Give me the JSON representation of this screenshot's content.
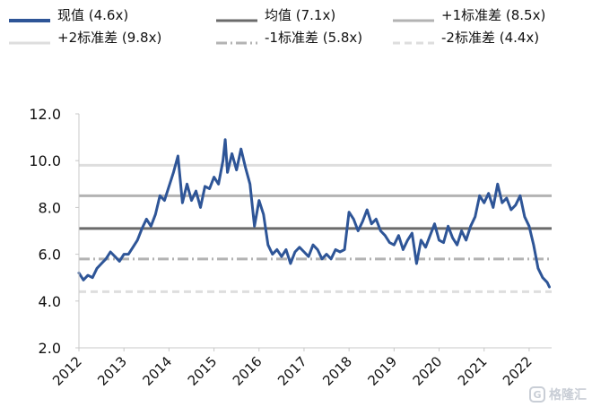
{
  "legend": [
    {
      "key": "current",
      "label": "现值 (4.6x)",
      "color": "#2e5597",
      "style": "solid",
      "width": 4
    },
    {
      "key": "mean",
      "label": "均值 (7.1x)",
      "color": "#6b6b6b",
      "style": "solid",
      "width": 3
    },
    {
      "key": "plus1",
      "label": "+1标准差 (8.5x)",
      "color": "#b3b3b3",
      "style": "solid",
      "width": 3
    },
    {
      "key": "plus2",
      "label": "+2标准差 (9.8x)",
      "color": "#dedede",
      "style": "solid",
      "width": 3
    },
    {
      "key": "minus1",
      "label": "-1标准差 (5.8x)",
      "color": "#b3b3b3",
      "style": "dashdot",
      "width": 3
    },
    {
      "key": "minus2",
      "label": "-2标准差 (4.4x)",
      "color": "#dedede",
      "style": "dashed",
      "width": 3
    }
  ],
  "watermark": "格隆汇",
  "chart_data": {
    "type": "line",
    "title": "",
    "xlabel": "",
    "ylabel": "",
    "ylim": [
      2.0,
      12.0
    ],
    "yticks": [
      "2.0",
      "4.0",
      "6.0",
      "8.0",
      "10.0",
      "12.0"
    ],
    "xticks": [
      "2012",
      "2013",
      "2014",
      "2015",
      "2016",
      "2017",
      "2018",
      "2019",
      "2020",
      "2021",
      "2022"
    ],
    "xlim": [
      2012.0,
      2022.5
    ],
    "grid": false,
    "legend_position": "top",
    "reference_lines": [
      {
        "name": "均值",
        "value": 7.1
      },
      {
        "name": "+1标准差",
        "value": 8.5
      },
      {
        "name": "+2标准差",
        "value": 9.8
      },
      {
        "name": "-1标准差",
        "value": 5.8
      },
      {
        "name": "-2标准差",
        "value": 4.4
      }
    ],
    "series": [
      {
        "name": "现值",
        "x": [
          2012.0,
          2012.1,
          2012.2,
          2012.3,
          2012.4,
          2012.5,
          2012.6,
          2012.7,
          2012.8,
          2012.9,
          2013.0,
          2013.1,
          2013.2,
          2013.3,
          2013.4,
          2013.5,
          2013.6,
          2013.7,
          2013.8,
          2013.9,
          2014.0,
          2014.1,
          2014.2,
          2014.3,
          2014.4,
          2014.5,
          2014.6,
          2014.7,
          2014.8,
          2014.9,
          2015.0,
          2015.1,
          2015.2,
          2015.25,
          2015.3,
          2015.4,
          2015.5,
          2015.6,
          2015.7,
          2015.8,
          2015.9,
          2016.0,
          2016.1,
          2016.2,
          2016.3,
          2016.4,
          2016.5,
          2016.6,
          2016.7,
          2016.8,
          2016.9,
          2017.0,
          2017.1,
          2017.2,
          2017.3,
          2017.4,
          2017.5,
          2017.6,
          2017.7,
          2017.8,
          2017.9,
          2018.0,
          2018.1,
          2018.2,
          2018.3,
          2018.4,
          2018.5,
          2018.6,
          2018.7,
          2018.8,
          2018.9,
          2019.0,
          2019.1,
          2019.2,
          2019.3,
          2019.4,
          2019.5,
          2019.6,
          2019.7,
          2019.8,
          2019.9,
          2020.0,
          2020.1,
          2020.2,
          2020.3,
          2020.4,
          2020.5,
          2020.6,
          2020.7,
          2020.8,
          2020.9,
          2021.0,
          2021.1,
          2021.2,
          2021.3,
          2021.4,
          2021.5,
          2021.6,
          2021.7,
          2021.8,
          2021.9,
          2022.0,
          2022.1,
          2022.2,
          2022.3,
          2022.4,
          2022.45
        ],
        "values": [
          5.2,
          4.9,
          5.1,
          5.0,
          5.4,
          5.6,
          5.8,
          6.1,
          5.9,
          5.7,
          6.0,
          6.0,
          6.3,
          6.6,
          7.1,
          7.5,
          7.2,
          7.7,
          8.5,
          8.3,
          8.9,
          9.5,
          10.2,
          8.2,
          9.0,
          8.3,
          8.7,
          8.0,
          8.9,
          8.8,
          9.3,
          9.0,
          10.0,
          10.9,
          9.5,
          10.3,
          9.6,
          10.5,
          9.7,
          9.0,
          7.2,
          8.3,
          7.7,
          6.4,
          6.0,
          6.2,
          5.9,
          6.2,
          5.6,
          6.1,
          6.3,
          6.1,
          5.9,
          6.4,
          6.2,
          5.8,
          6.0,
          5.8,
          6.2,
          6.1,
          6.2,
          7.8,
          7.5,
          7.0,
          7.4,
          7.9,
          7.3,
          7.5,
          7.0,
          6.8,
          6.5,
          6.4,
          6.8,
          6.2,
          6.6,
          6.9,
          5.6,
          6.6,
          6.3,
          6.8,
          7.3,
          6.6,
          6.5,
          7.2,
          6.7,
          6.4,
          7.0,
          6.6,
          7.2,
          7.6,
          8.5,
          8.2,
          8.6,
          8.0,
          9.0,
          8.2,
          8.4,
          7.9,
          8.1,
          8.5,
          7.6,
          7.2,
          6.4,
          5.4,
          5.0,
          4.8,
          4.6
        ]
      }
    ]
  }
}
